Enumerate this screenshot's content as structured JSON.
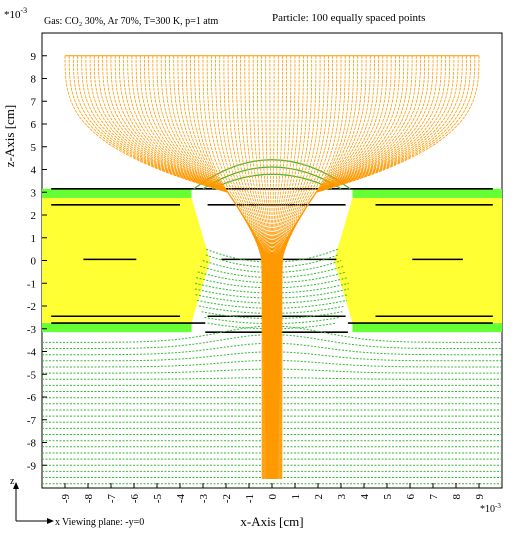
{
  "chart_data": {
    "type": "line",
    "title_left": "Gas: CO₂ 30%, Ar 70%, T=300 K, p=1 atm",
    "title_right": "Particle: 100 equally spaced points",
    "xlabel": "x-Axis [cm]",
    "ylabel": "z-Axis [cm]",
    "x_exponent": "*10",
    "x_exponent_power": "-3",
    "y_exponent": "*10",
    "y_exponent_power": "-3",
    "xlim": [
      -10,
      10
    ],
    "ylim": [
      -10,
      10
    ],
    "x_ticks": [
      -9,
      -8,
      -7,
      -6,
      -5,
      -4,
      -3,
      -2,
      -1,
      0,
      1,
      2,
      3,
      4,
      5,
      6,
      7,
      8,
      9
    ],
    "y_ticks": [
      -9,
      -8,
      -7,
      -6,
      -5,
      -4,
      -3,
      -2,
      -1,
      0,
      1,
      2,
      3,
      4,
      5,
      6,
      7,
      8,
      9
    ],
    "viewing_plane": "Viewing plane: -y=0",
    "axis_glyph_x": "x",
    "axis_glyph_z": "z",
    "electron_start_z": 9,
    "electron_count": 100,
    "hole_half_width_top": 3.5,
    "hole_half_width_mid": 2.7,
    "electrode_top_z": [
      2.75,
      3.15
    ],
    "electrode_bottom_z": [
      -3.15,
      -2.75
    ],
    "insulator_z": [
      -2.75,
      2.75
    ],
    "colors": {
      "insulator": "#ffff33",
      "electrode": "#66ff33",
      "field_lines": "#33bb33",
      "drift_lines": "#ff9900",
      "conductor_edges": "#000000"
    }
  }
}
